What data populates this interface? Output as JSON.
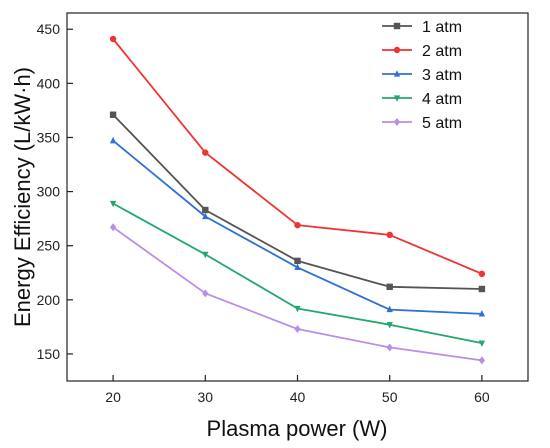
{
  "chart_data": {
    "type": "line",
    "title": "",
    "xlabel": "Plasma power (W)",
    "ylabel": "Energy Efficiency (L/kW·h)",
    "x": [
      20,
      30,
      40,
      50,
      60
    ],
    "x_ticks": [
      "20",
      "30",
      "40",
      "50",
      "60"
    ],
    "y_ticks": [
      "150",
      "200",
      "250",
      "300",
      "350",
      "400",
      "450"
    ],
    "xlim": [
      15,
      65
    ],
    "ylim": [
      125,
      465
    ],
    "grid": false,
    "legend_position": "top-right",
    "series": [
      {
        "name": "1 atm",
        "color": "#555555",
        "marker": "square",
        "values": [
          371,
          283,
          236,
          212,
          210
        ]
      },
      {
        "name": "2 atm",
        "color": "#ee3333",
        "marker": "circle",
        "values": [
          441,
          336,
          269,
          260,
          224
        ]
      },
      {
        "name": "3 atm",
        "color": "#2f6fd6",
        "marker": "triangle",
        "values": [
          347,
          277,
          230,
          191,
          187
        ]
      },
      {
        "name": "4 atm",
        "color": "#22a86e",
        "marker": "triangle-down",
        "values": [
          289,
          242,
          192,
          177,
          160
        ]
      },
      {
        "name": "5 atm",
        "color": "#b98ee6",
        "marker": "diamond",
        "values": [
          267,
          206,
          173,
          156,
          144
        ]
      }
    ]
  }
}
